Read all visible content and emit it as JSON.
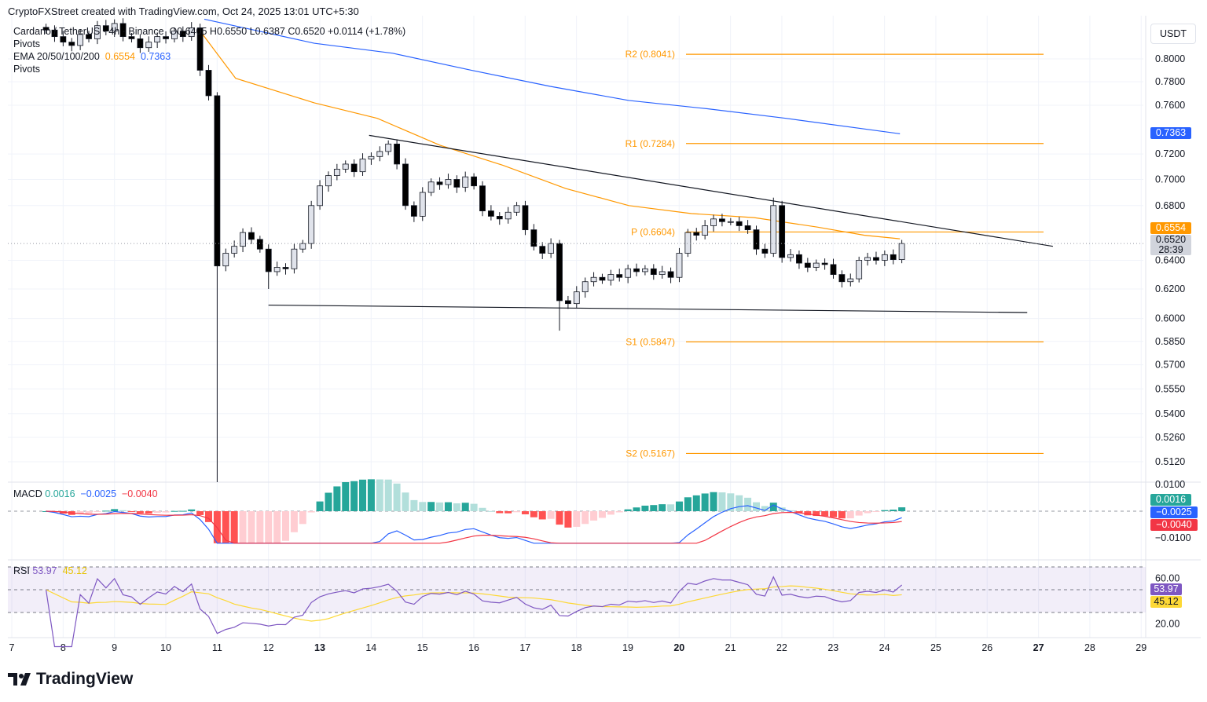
{
  "header": "CryptoFXStreet created with TradingView.com, Oct 24, 2025 13:01 UTC+5:30",
  "legend": {
    "symbol": "Cardano / TetherUS · 4h · Binance",
    "ohlc": "O0.6405  H0.6550  L0.6387  C0.6520  +0.0114 (+1.78%)",
    "pivots1": "Pivots",
    "ema_label": "EMA 20/50/100/200",
    "ema50": "0.6554",
    "ema200": "0.7363",
    "pivots2": "Pivots"
  },
  "currency": "USDT",
  "macd_legend": {
    "label": "MACD",
    "hist": "0.0016",
    "macd": "−0.0025",
    "signal": "−0.0040"
  },
  "rsi_legend": {
    "label": "RSI",
    "rsi": "53.97",
    "ma": "45.12"
  },
  "tags": {
    "ema200": "0.7363",
    "ema50": "0.6554",
    "last": "0.6520",
    "countdown": "28:39",
    "hist": "0.0016",
    "macd": "−0.0025",
    "signal": "−0.0040",
    "rsi": "53.97",
    "rsi_ma": "45.12"
  },
  "brand": "TradingView",
  "colors": {
    "ema50": "#ff9800",
    "ema200": "#2962ff",
    "pivot": "#ff9800",
    "hist_up": "#26a69a",
    "hist_up_light": "#b2dfdb",
    "hist_down": "#ff5252",
    "hist_down_light": "#ffcdd2",
    "macd": "#2962ff",
    "signal": "#f23645",
    "rsi": "#7e57c2",
    "rsi_ma": "#fdd835"
  },
  "chart_data": {
    "type": "candlestick",
    "scale": "log",
    "y_ticks": [
      "0.8000",
      "0.7800",
      "0.7600",
      "0.7200",
      "0.7000",
      "0.6800",
      "0.6400",
      "0.6200",
      "0.6000",
      "0.5850",
      "0.5700",
      "0.5550",
      "0.5400",
      "0.5260",
      "0.5120"
    ],
    "x_ticks": [
      {
        "l": "7",
        "d": 7
      },
      {
        "l": "8",
        "d": 8
      },
      {
        "l": "9",
        "d": 9
      },
      {
        "l": "10",
        "d": 10
      },
      {
        "l": "11",
        "d": 11
      },
      {
        "l": "12",
        "d": 12
      },
      {
        "l": "13",
        "d": 13,
        "b": true
      },
      {
        "l": "14",
        "d": 14
      },
      {
        "l": "15",
        "d": 15
      },
      {
        "l": "16",
        "d": 16
      },
      {
        "l": "17",
        "d": 17
      },
      {
        "l": "18",
        "d": 18
      },
      {
        "l": "19",
        "d": 19
      },
      {
        "l": "20",
        "d": 20,
        "b": true
      },
      {
        "l": "21",
        "d": 21
      },
      {
        "l": "22",
        "d": 22
      },
      {
        "l": "23",
        "d": 23
      },
      {
        "l": "24",
        "d": 24
      },
      {
        "l": "25",
        "d": 25
      },
      {
        "l": "26",
        "d": 26
      },
      {
        "l": "27",
        "d": 27,
        "b": true
      },
      {
        "l": "28",
        "d": 28
      },
      {
        "l": "29",
        "d": 29
      }
    ],
    "first_candle_day": 7.667,
    "interval_days": 0.1667,
    "closes": [
      0.826,
      0.82,
      0.815,
      0.812,
      0.822,
      0.818,
      0.83,
      0.825,
      0.832,
      0.82,
      0.818,
      0.81,
      0.815,
      0.82,
      0.818,
      0.825,
      0.82,
      0.828,
      0.79,
      0.768,
      0.636,
      0.645,
      0.65,
      0.66,
      0.655,
      0.648,
      0.632,
      0.635,
      0.634,
      0.648,
      0.652,
      0.68,
      0.695,
      0.703,
      0.708,
      0.712,
      0.706,
      0.716,
      0.718,
      0.722,
      0.728,
      0.712,
      0.68,
      0.672,
      0.69,
      0.698,
      0.696,
      0.7,
      0.694,
      0.702,
      0.695,
      0.676,
      0.672,
      0.67,
      0.675,
      0.68,
      0.662,
      0.65,
      0.645,
      0.652,
      0.612,
      0.61,
      0.618,
      0.625,
      0.628,
      0.626,
      0.63,
      0.628,
      0.634,
      0.632,
      0.634,
      0.63,
      0.632,
      0.628,
      0.645,
      0.66,
      0.658,
      0.665,
      0.67,
      0.668,
      0.668,
      0.665,
      0.662,
      0.648,
      0.645,
      0.68,
      0.642,
      0.644,
      0.638,
      0.635,
      0.638,
      0.637,
      0.63,
      0.625,
      0.627,
      0.64,
      0.642,
      0.64,
      0.644,
      0.6405,
      0.652
    ],
    "ema50": [
      [
        10.67,
        0.825
      ],
      [
        11.36,
        0.783
      ],
      [
        12.89,
        0.762
      ],
      [
        14.12,
        0.749
      ],
      [
        15.34,
        0.727
      ],
      [
        16.57,
        0.711
      ],
      [
        17.79,
        0.693
      ],
      [
        19.02,
        0.68
      ],
      [
        20.24,
        0.674
      ],
      [
        21.46,
        0.671
      ],
      [
        22.69,
        0.664
      ],
      [
        23.61,
        0.658
      ],
      [
        24.3,
        0.6554
      ]
    ],
    "ema200": [
      [
        10.75,
        0.836
      ],
      [
        12.89,
        0.814
      ],
      [
        14.42,
        0.805
      ],
      [
        15.95,
        0.79
      ],
      [
        17.49,
        0.776
      ],
      [
        19.02,
        0.764
      ],
      [
        20.55,
        0.757
      ],
      [
        22.08,
        0.749
      ],
      [
        24.3,
        0.7363
      ]
    ],
    "pivots": [
      {
        "label": "R2 (0.8041)",
        "v": 0.8041
      },
      {
        "label": "R1 (0.7284)",
        "v": 0.7284
      },
      {
        "label": "P (0.6604)",
        "v": 0.6604
      },
      {
        "label": "S1 (0.5847)",
        "v": 0.5847
      },
      {
        "label": "S2 (0.5167)",
        "v": 0.5167
      }
    ],
    "trendlines": [
      {
        "from": [
          13.96,
          0.735
        ],
        "to": [
          27.28,
          0.65
        ]
      },
      {
        "from": [
          12.0,
          0.609
        ],
        "to": [
          26.78,
          0.604
        ]
      }
    ],
    "macd_ticks": [
      "0.0100",
      "−0.0100"
    ],
    "rsi_ticks": [
      "60.00",
      "20.00"
    ]
  }
}
